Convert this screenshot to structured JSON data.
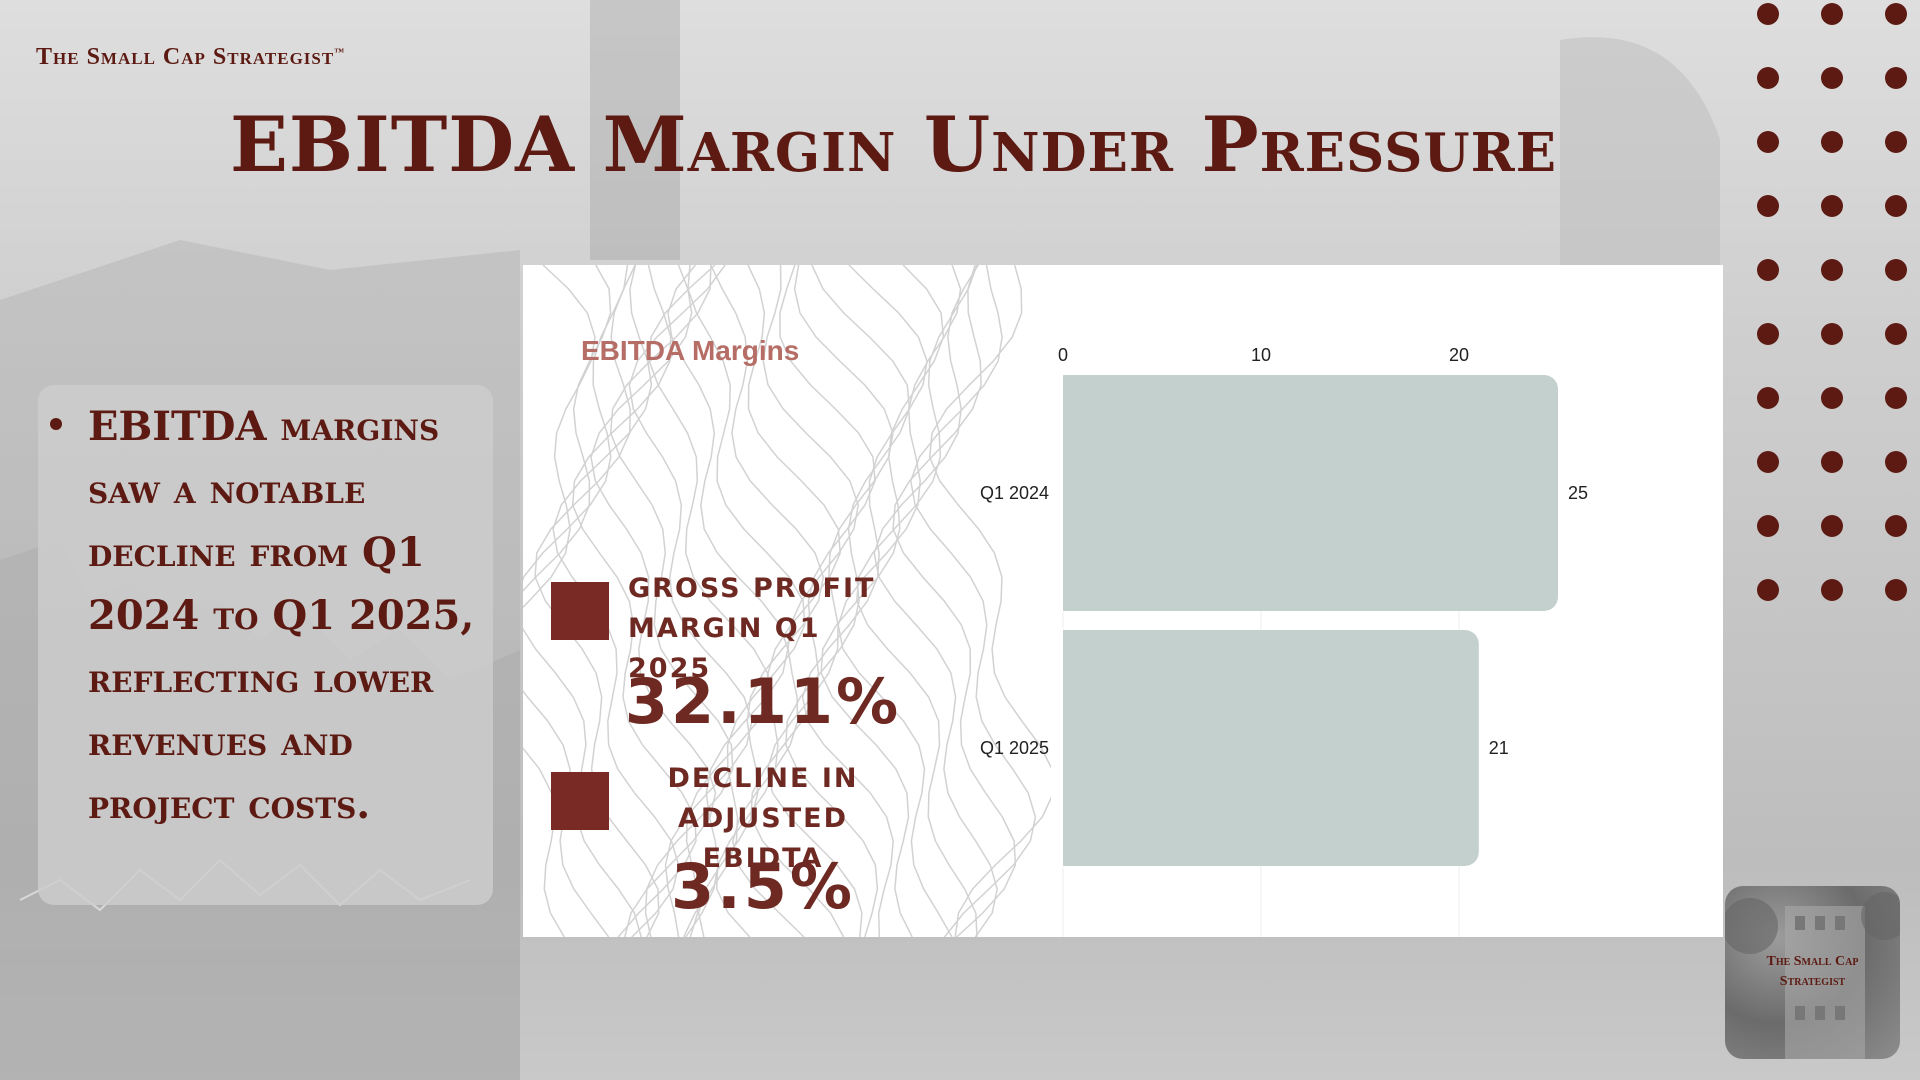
{
  "header": {
    "brand": "The Small Cap Strategist",
    "brand_mark": "™",
    "title": "EBITDA Margin Under Pressure"
  },
  "bullets": [
    "EBITDA margins saw a notable decline from Q1 2024 to Q1 2025, reflecting lower revenues and project costs."
  ],
  "kpis": [
    {
      "label_line1": "GROSS PROFIT",
      "label_line2": "MARGIN Q1 2025",
      "value": "32.11%"
    },
    {
      "label_line1": "DECLINE IN",
      "label_line2": "ADJUSTED EBIDTA",
      "value": "3.5%"
    }
  ],
  "corner_logo": {
    "line1": "The Small Cap",
    "line2": "Strategist"
  },
  "colors": {
    "brand": "#5c1a12",
    "kpi": "#6e2a22",
    "kpi_square": "#7a2a24",
    "chart_title": "#b56d66",
    "bar": "#c3d0cd"
  },
  "chart_data": {
    "type": "bar",
    "orientation": "horizontal",
    "title": "EBITDA Margins",
    "categories": [
      "Q1 2024",
      "Q1 2025"
    ],
    "values": [
      25,
      21
    ],
    "data_labels": [
      "25",
      "21"
    ],
    "xlim": [
      0,
      30
    ],
    "x_ticks": [
      0,
      10,
      20
    ],
    "x_axis_position": "top",
    "grid": true,
    "legend": "none"
  }
}
